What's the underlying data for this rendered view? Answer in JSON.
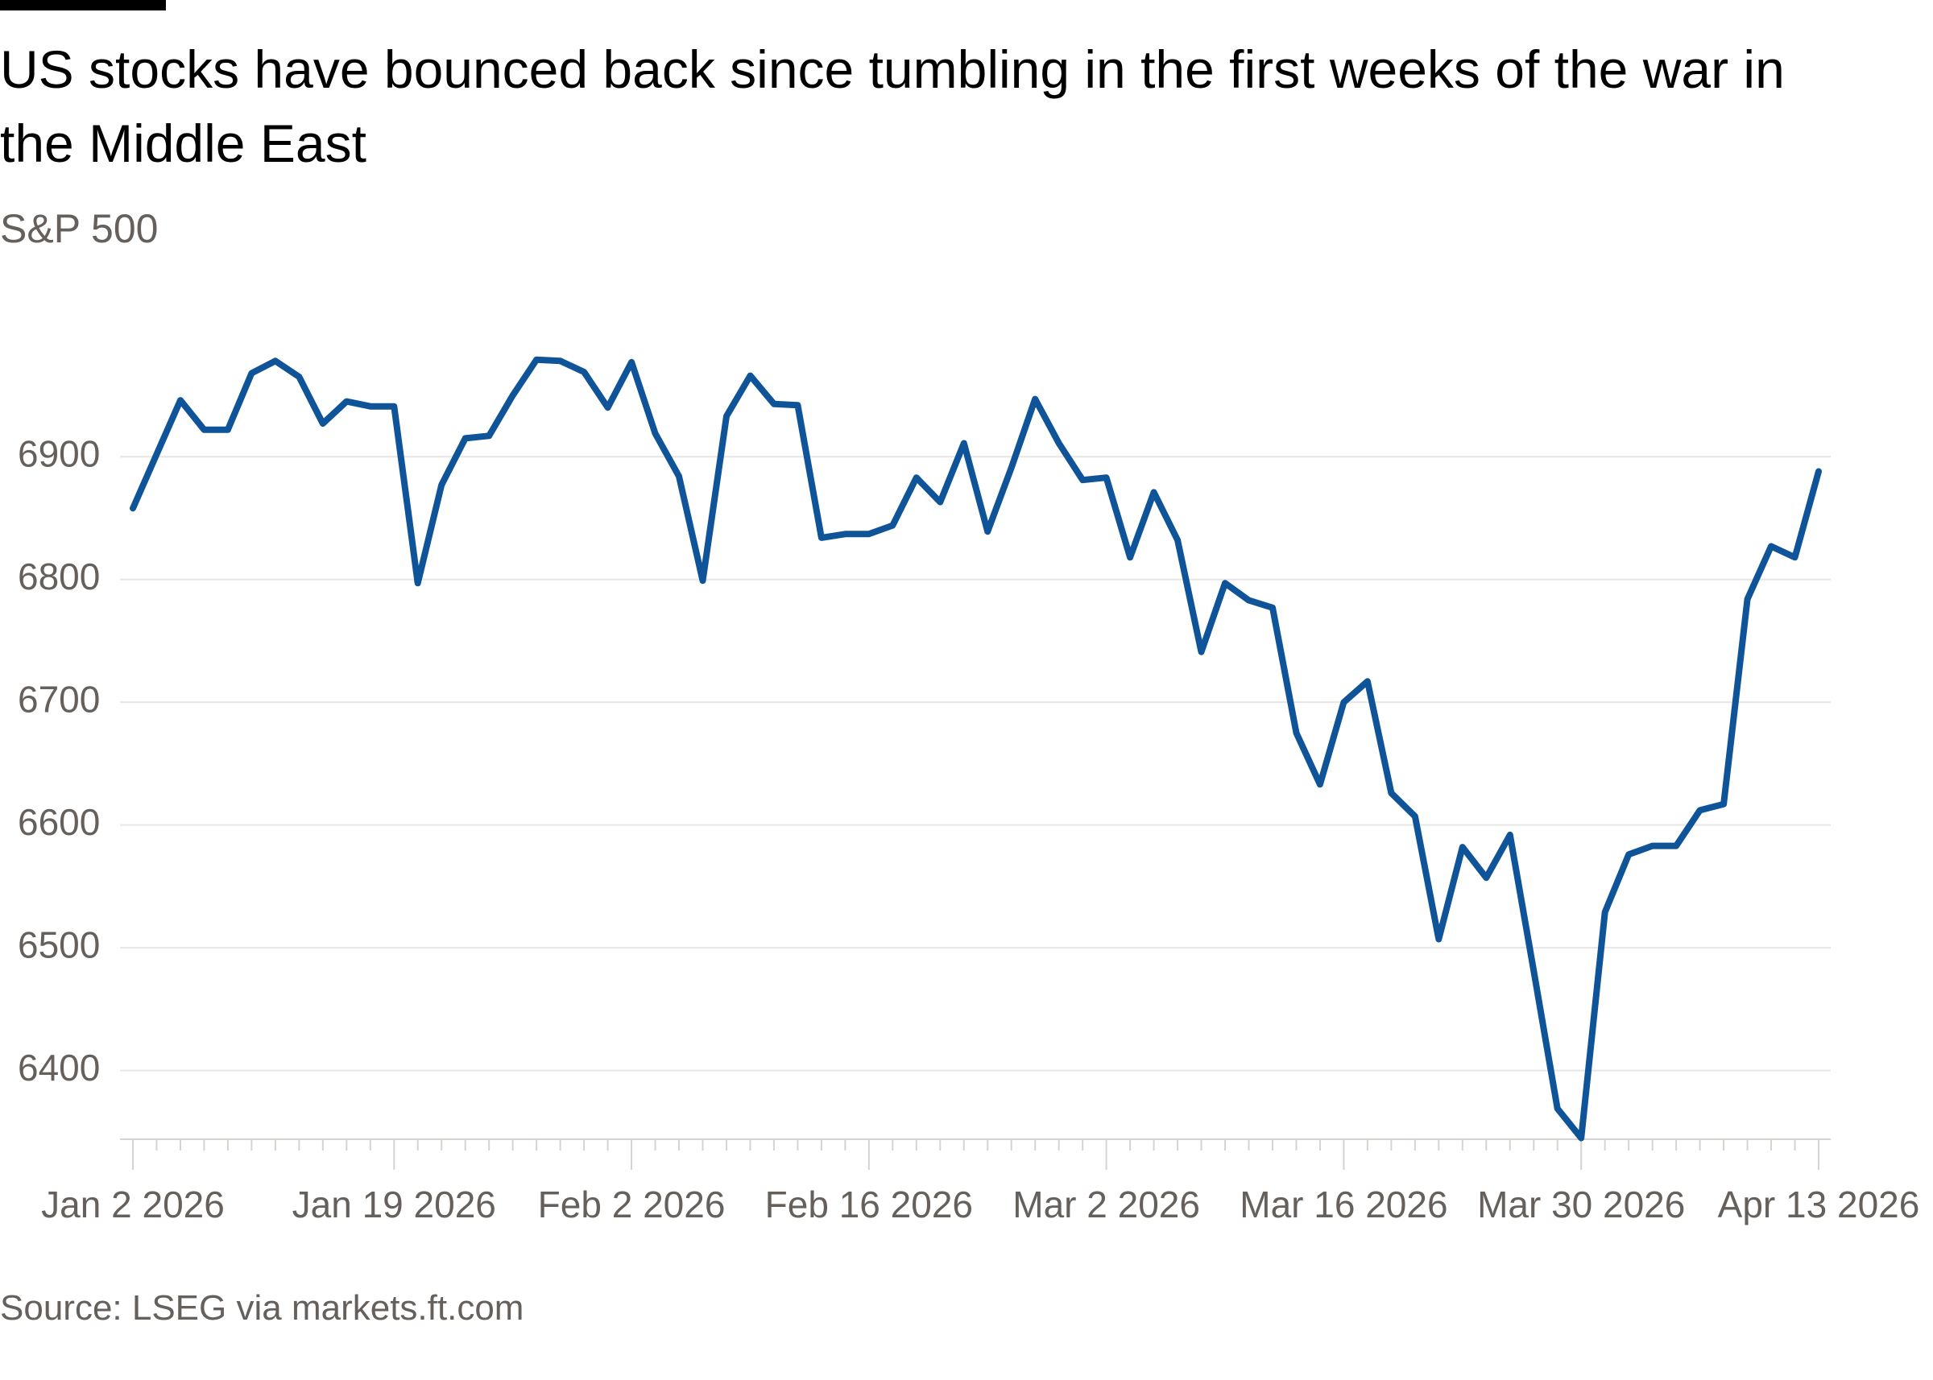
{
  "chart_data": {
    "type": "line",
    "title": "US stocks have bounced back since tumbling in the first weeks of the war in the Middle East",
    "subtitle": "S&P 500",
    "source": "Source: LSEG via markets.ft.com",
    "categories": [
      "Jan 2 2026",
      null,
      null,
      null,
      null,
      null,
      null,
      null,
      null,
      null,
      null,
      "Jan 19 2026",
      null,
      null,
      null,
      null,
      null,
      null,
      null,
      null,
      null,
      "Feb 2 2026",
      null,
      null,
      null,
      null,
      null,
      null,
      null,
      null,
      null,
      "Feb 16 2026",
      null,
      null,
      null,
      null,
      null,
      null,
      null,
      null,
      null,
      "Mar 2 2026",
      null,
      null,
      null,
      null,
      null,
      null,
      null,
      null,
      null,
      "Mar 16 2026",
      null,
      null,
      null,
      null,
      null,
      null,
      null,
      null,
      null,
      "Mar 30 2026",
      null,
      null,
      null,
      null,
      null,
      null,
      null,
      null,
      null,
      "Apr 13 2026"
    ],
    "series": [
      {
        "name": "S&P 500",
        "color": "#0f5499",
        "values": [
          6858,
          6902,
          6946,
          6922,
          6922,
          6968,
          6978,
          6965,
          6927,
          6945,
          6941,
          6941,
          6797,
          6877,
          6915,
          6917,
          6950,
          6979,
          6978,
          6969,
          6940,
          6977,
          6919,
          6884,
          6799,
          6933,
          6966,
          6943,
          6942,
          6834,
          6837,
          6837,
          6844,
          6883,
          6863,
          6911,
          6839,
          6891,
          6947,
          6911,
          6881,
          6883,
          6818,
          6871,
          6832,
          6741,
          6797,
          6783,
          6777,
          6675,
          6633,
          6700,
          6717,
          6626,
          6607,
          6507,
          6582,
          6557,
          6592,
          6481,
          6369,
          6345,
          6529,
          6576,
          6583,
          6583,
          6612,
          6617,
          6784,
          6827,
          6818,
          6888
        ]
      }
    ],
    "ylim": [
      6344,
      6990
    ],
    "yticks": [
      6400,
      6500,
      6600,
      6700,
      6800,
      6900
    ],
    "grid": true
  }
}
